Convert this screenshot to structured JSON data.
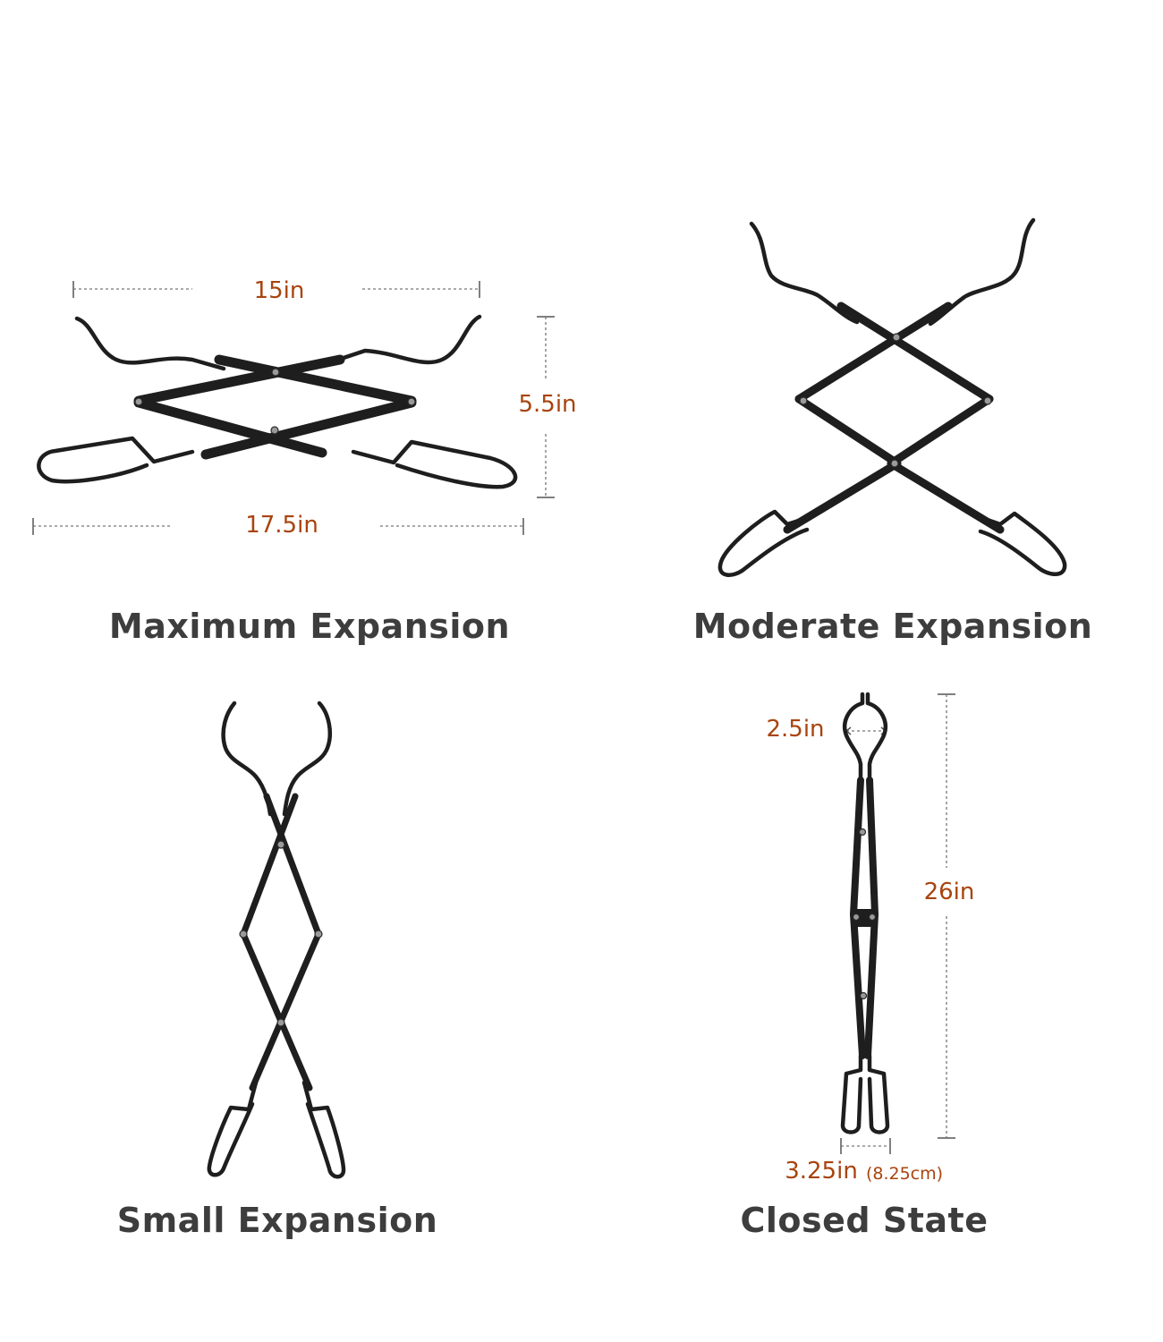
{
  "panels": {
    "maximum": {
      "caption": "Maximum Expansion",
      "dim_top": "15in",
      "dim_side": "5.5in",
      "dim_bottom": "17.5in"
    },
    "moderate": {
      "caption": "Moderate Expansion"
    },
    "small": {
      "caption": "Small Expansion"
    },
    "closed": {
      "caption": "Closed State",
      "dim_jaw": "2.5in",
      "dim_length": "26in",
      "dim_grip": "3.25in",
      "dim_grip_metric": "(8.25cm)"
    }
  },
  "colors": {
    "dimension_text": "#a8440e",
    "caption_text": "#3d3d3d",
    "tong_metal": "#1e1e1e"
  }
}
